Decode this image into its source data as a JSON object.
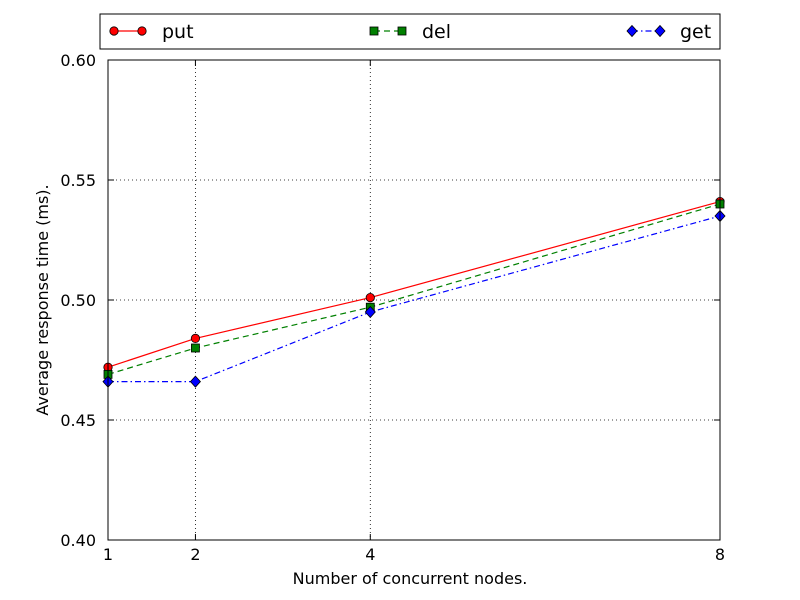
{
  "chart_data": {
    "type": "line",
    "title": "",
    "xlabel": "Number of concurrent nodes.",
    "ylabel": "Average response time (ms).",
    "x": [
      1,
      2,
      4,
      8
    ],
    "xlim": [
      1,
      8
    ],
    "ylim": [
      0.4,
      0.6
    ],
    "xticks": [
      "1",
      "2",
      "4",
      "8"
    ],
    "yticks": [
      "0.40",
      "0.45",
      "0.50",
      "0.55",
      "0.60"
    ],
    "grid": true,
    "legend_position": "top",
    "series": [
      {
        "name": "put",
        "values": [
          0.472,
          0.484,
          0.501,
          0.541
        ],
        "color": "#ff0000",
        "marker": "circle",
        "dash": "solid"
      },
      {
        "name": "del",
        "values": [
          0.469,
          0.48,
          0.497,
          0.54
        ],
        "color": "#008000",
        "marker": "square",
        "dash": "dashed"
      },
      {
        "name": "get",
        "values": [
          0.466,
          0.466,
          0.495,
          0.535
        ],
        "color": "#0000ff",
        "marker": "diamond",
        "dash": "dashdot"
      }
    ]
  }
}
